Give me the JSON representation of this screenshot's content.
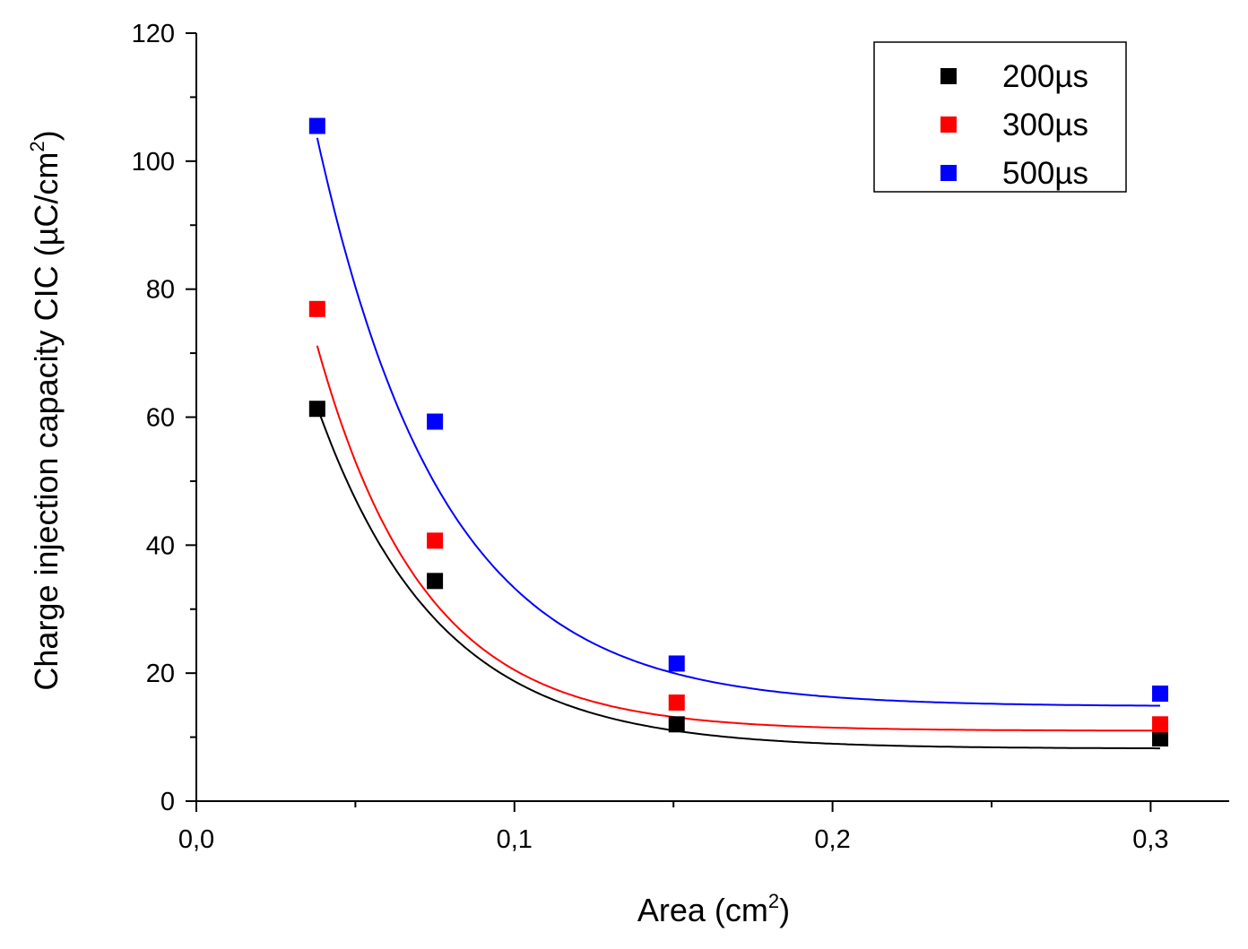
{
  "chart_data": {
    "type": "scatter",
    "xlabel_main": "Area (cm",
    "xlabel_sup": "2",
    "xlabel_end": ")",
    "ylabel_main": "Charge injection capacity CIC (µC/cm",
    "ylabel_sup": "2",
    "ylabel_end": ")",
    "xlim": [
      0,
      0.32
    ],
    "ylim": [
      0,
      120
    ],
    "x_ticks": [
      0.0,
      0.1,
      0.2,
      0.3
    ],
    "x_tick_labels": [
      "0,0",
      "0,1",
      "0,2",
      "0,3"
    ],
    "x_minor_ticks": [
      0.05,
      0.15,
      0.25
    ],
    "y_ticks": [
      0,
      20,
      40,
      60,
      80,
      100,
      120
    ],
    "y_tick_labels": [
      "0",
      "20",
      "40",
      "60",
      "80",
      "100",
      "120"
    ],
    "y_minor_ticks": [
      10,
      30,
      50,
      70,
      90,
      110
    ],
    "legend_position": "top-right",
    "series": [
      {
        "name": "200µs",
        "color": "#000000",
        "x": [
          0.038,
          0.075,
          0.151,
          0.303
        ],
        "y": [
          61.3,
          34.4,
          12.0,
          9.8
        ],
        "fit": {
          "y0": 8.2,
          "A": 144.4,
          "t": 0.0382
        }
      },
      {
        "name": "300µs",
        "color": "#ff0000",
        "x": [
          0.038,
          0.075,
          0.151,
          0.303
        ],
        "y": [
          76.9,
          40.7,
          15.4,
          12.0
        ],
        "fit": {
          "y0": 11.0,
          "A": 186.4,
          "t": 0.0336
        }
      },
      {
        "name": "500µs",
        "color": "#0000ff",
        "x": [
          0.038,
          0.075,
          0.151,
          0.303
        ],
        "y": [
          105.5,
          59.3,
          21.5,
          16.8
        ],
        "fit": {
          "y0": 14.8,
          "A": 232.5,
          "t": 0.0395
        }
      }
    ]
  }
}
